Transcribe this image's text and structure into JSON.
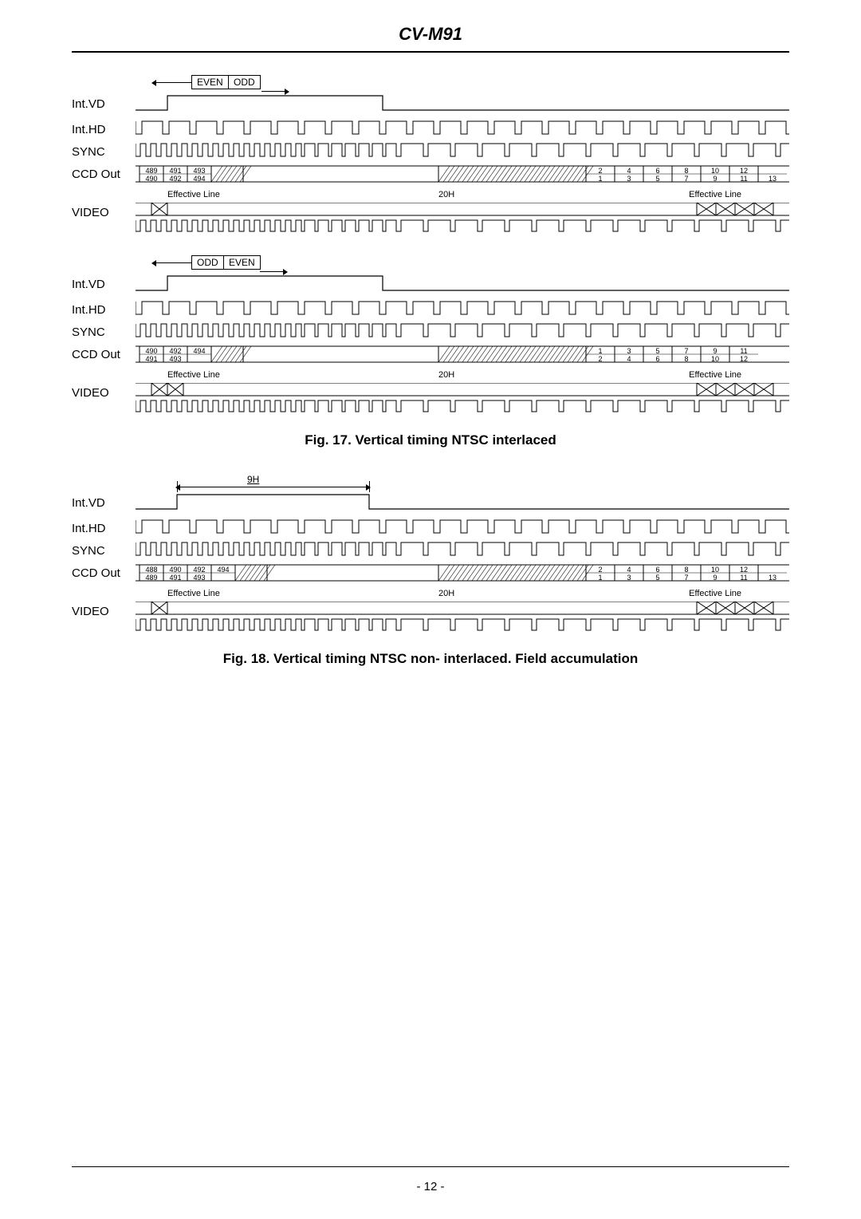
{
  "header": {
    "title": "CV-M91"
  },
  "diagram1": {
    "field_left": "EVEN",
    "field_right": "ODD",
    "rows": [
      "Int.VD",
      "Int.HD",
      "SYNC",
      "CCD Out",
      "VIDEO"
    ],
    "eff_left": "Effective Line",
    "eff_mid": "20H",
    "eff_right": "Effective Line",
    "ccd_left_top": [
      "489",
      "491",
      "493"
    ],
    "ccd_left_bot": [
      "490",
      "492",
      "494"
    ],
    "ccd_right_top": [
      "2",
      "4",
      "6",
      "8",
      "10",
      "12"
    ],
    "ccd_right_bot": [
      "1",
      "3",
      "5",
      "7",
      "9",
      "11",
      "13"
    ],
    "caption": "Fig. 17. Vertical timing NTSC interlaced"
  },
  "diagram2": {
    "field_left": "ODD",
    "field_right": "EVEN",
    "rows": [
      "Int.VD",
      "Int.HD",
      "SYNC",
      "CCD Out",
      "VIDEO"
    ],
    "eff_left": "Effective Line",
    "eff_mid": "20H",
    "eff_right": "Effective Line",
    "ccd_left_top": [
      "490",
      "492",
      "494"
    ],
    "ccd_left_bot": [
      "491",
      "493"
    ],
    "ccd_right_top": [
      "1",
      "3",
      "5",
      "7",
      "9",
      "11"
    ],
    "ccd_right_bot": [
      "2",
      "4",
      "6",
      "8",
      "10",
      "12"
    ]
  },
  "diagram3": {
    "nineH": "9H",
    "rows": [
      "Int.VD",
      "Int.HD",
      "SYNC",
      "CCD Out",
      "VIDEO"
    ],
    "eff_left": "Effective Line",
    "eff_mid": "20H",
    "eff_right": "Effective Line",
    "ccd_left_top": [
      "488",
      "490",
      "492",
      "494"
    ],
    "ccd_left_bot": [
      "489",
      "491",
      "493"
    ],
    "ccd_right_top": [
      "2",
      "4",
      "6",
      "8",
      "10",
      "12"
    ],
    "ccd_right_bot": [
      "1",
      "3",
      "5",
      "7",
      "9",
      "11",
      "13"
    ],
    "caption": "Fig. 18. Vertical timing NTSC non- interlaced. Field accumulation"
  },
  "footer": {
    "page": "- 12 -"
  },
  "colors": {
    "line": "#000000",
    "bg": "#ffffff"
  }
}
